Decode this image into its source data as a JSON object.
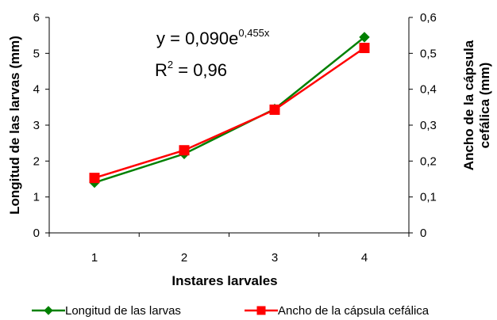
{
  "chart_data": {
    "type": "line",
    "categories": [
      "1",
      "2",
      "3",
      "4"
    ],
    "series": [
      {
        "name": "Longitud de las larvas",
        "axis": "left",
        "color": "#008000",
        "marker": "diamond",
        "values": [
          1.4,
          2.2,
          3.45,
          5.45
        ]
      },
      {
        "name": "Ancho de la cápsula cefálica",
        "axis": "right",
        "color": "#ff0000",
        "marker": "square",
        "values": [
          0.153,
          0.23,
          0.343,
          0.515
        ]
      }
    ],
    "xlabel": "Instares  larvales",
    "ylabel_left": "Longitud de las larvas (mm)",
    "ylabel_right_line1": "Ancho de la cápsula",
    "ylabel_right_line2": "cefálica (mm)",
    "ylim_left": [
      0,
      6
    ],
    "ylim_right": [
      0,
      0.6
    ],
    "yticks_left": [
      "0",
      "1",
      "2",
      "3",
      "4",
      "5",
      "6"
    ],
    "yticks_right": [
      "0",
      "0,1",
      "0,2",
      "0,3",
      "0,4",
      "0,5",
      "0,6"
    ],
    "grid": false,
    "legend_position": "bottom",
    "annotation": {
      "eq_base": "y = 0,090e",
      "eq_exponent": "0,455x",
      "r2_label": "R",
      "r2_sup": "2",
      "r2_value": " = 0,96"
    }
  }
}
